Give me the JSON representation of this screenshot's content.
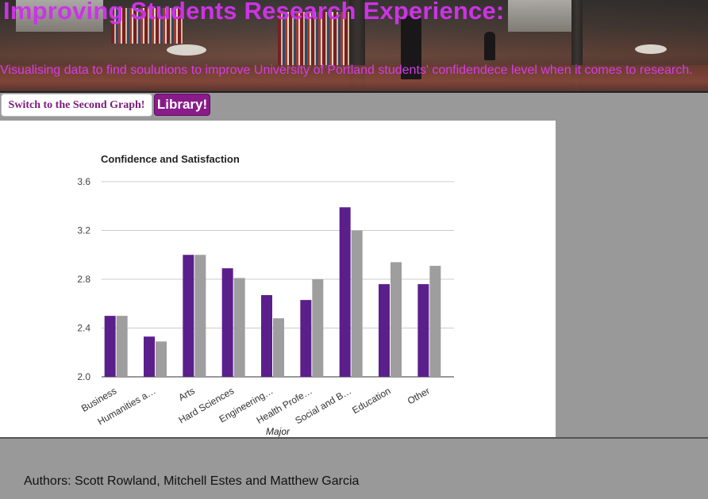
{
  "header": {
    "title": "Improving Students Research Experience:",
    "subtitle": "Visualising data to find soulutions to improve University of Portland students' confidendece level when it comes to research."
  },
  "buttons": {
    "switch_label": "Switch to the Second Graph!",
    "library_label": "Library!"
  },
  "footer": {
    "authors": "Authors: Scott Rowland, Mitchell Estes and Matthew Garcia"
  },
  "colors": {
    "title": "#cc33e6",
    "series_1": "#5b1f8c",
    "series_2": "#9e9e9e",
    "page_background": "#999999"
  },
  "chart_data": {
    "type": "bar",
    "title": "Confidence and Satisfaction",
    "xlabel": "Major",
    "ylabel": "",
    "ylim": [
      2.0,
      3.6
    ],
    "yticks": [
      "2.0",
      "2.4",
      "2.8",
      "3.2",
      "3.6"
    ],
    "ytick_values": [
      2.0,
      2.4,
      2.8,
      3.2,
      3.6
    ],
    "grid": true,
    "legend": "none",
    "categories": [
      "Business",
      "Humanities a…",
      "Arts",
      "Hard Sciences",
      "Engineering…",
      "Health Profe…",
      "Social and B…",
      "Education",
      "Other"
    ],
    "series": [
      {
        "values": [
          2.5,
          2.33,
          3.0,
          2.89,
          2.67,
          2.63,
          3.39,
          2.76,
          2.76
        ]
      },
      {
        "values": [
          2.5,
          2.29,
          3.0,
          2.81,
          2.48,
          2.8,
          3.2,
          2.94,
          2.91
        ]
      }
    ]
  }
}
